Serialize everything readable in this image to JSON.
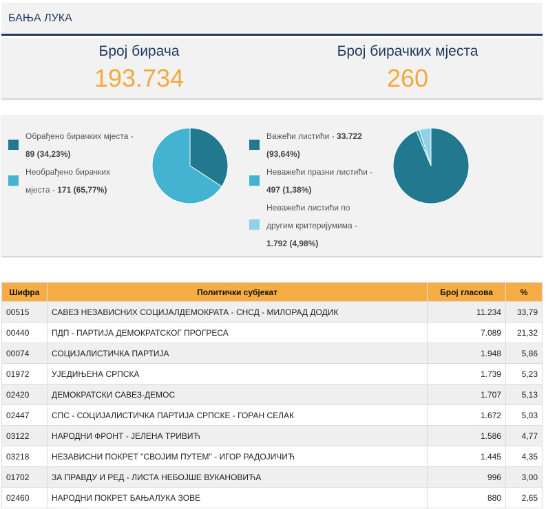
{
  "title": "БАЊА ЛУКА",
  "stats": {
    "voters_label": "Број бирача",
    "voters_value": "193.734",
    "stations_label": "Број бирачких мјеста",
    "stations_value": "260"
  },
  "pie1": {
    "legend": [
      {
        "line1": "Обрађено бирачких мјеста -",
        "bold": "89 (34,23%)",
        "prefix": "",
        "color": "#22788f",
        "share": 34.23
      },
      {
        "line1": "Необрађено бирачких",
        "prefix": "мјеста - ",
        "bold": "171 (65,77%)",
        "color": "#44b3d1",
        "share": 65.77
      }
    ]
  },
  "pie2": {
    "legend": [
      {
        "line1": "Важећи листићи - ",
        "bold": "33.722",
        "line2": "(93,64%)",
        "color": "#22788f",
        "share": 93.64
      },
      {
        "line1": "Неважећи празни листићи -",
        "bold": "497 (1,38%)",
        "color": "#44b3d1",
        "share": 1.38
      },
      {
        "line1": "Неважећи листићи по",
        "line2": "другим критеријумима -",
        "bold": "1.792 (4,98%)",
        "color": "#91d3e6",
        "share": 4.98
      }
    ]
  },
  "table": {
    "headers": [
      "Шифра",
      "Политички субјекат",
      "Број гласова",
      "%"
    ],
    "rows": [
      {
        "code": "00515",
        "party": "САВЕЗ НЕЗАВИСНИХ СОЦИЈАЛДЕМОКРАТА - СНСД - МИЛОРАД ДОДИК",
        "votes": "11.234",
        "pct": "33,79"
      },
      {
        "code": "00440",
        "party": "ПДП - ПАРТИЈА ДЕМОКРАТСКОГ ПРОГРЕСА",
        "votes": "7.089",
        "pct": "21,32"
      },
      {
        "code": "00074",
        "party": "СОЦИЈАЛИСТИЧКА ПАРТИЈА",
        "votes": "1.948",
        "pct": "5,86"
      },
      {
        "code": "01972",
        "party": "УЈЕДИЊЕНА СРПСКА",
        "votes": "1.739",
        "pct": "5,23"
      },
      {
        "code": "02420",
        "party": "ДЕМОКРАТСКИ САВЕЗ-ДЕМОС",
        "votes": "1.707",
        "pct": "5,13"
      },
      {
        "code": "02447",
        "party": "СПС - СОЦИЈАЛИСТИЧКА ПАРТИЈА СРПСКЕ - ГОРАН СЕЛАК",
        "votes": "1.672",
        "pct": "5,03"
      },
      {
        "code": "03122",
        "party": "НАРОДНИ ФРОНТ - ЈЕЛЕНА ТРИВИЋ",
        "votes": "1.586",
        "pct": "4,77"
      },
      {
        "code": "03218",
        "party": "НЕЗАВИСНИ ПОКРЕТ \"СВОЈИМ ПУТЕМ\" - ИГОР РАДОЈИЧИЋ",
        "votes": "1.445",
        "pct": "4,35"
      },
      {
        "code": "01702",
        "party": "ЗА ПРАВДУ И РЕД - ЛИСТА НЕБОЈШЕ ВУКАНОВИЋА",
        "votes": "996",
        "pct": "3,00"
      },
      {
        "code": "02460",
        "party": "НАРОДНИ ПОКРЕТ БАЊАЛУКА ЗОВЕ",
        "votes": "880",
        "pct": "2,65"
      }
    ]
  }
}
